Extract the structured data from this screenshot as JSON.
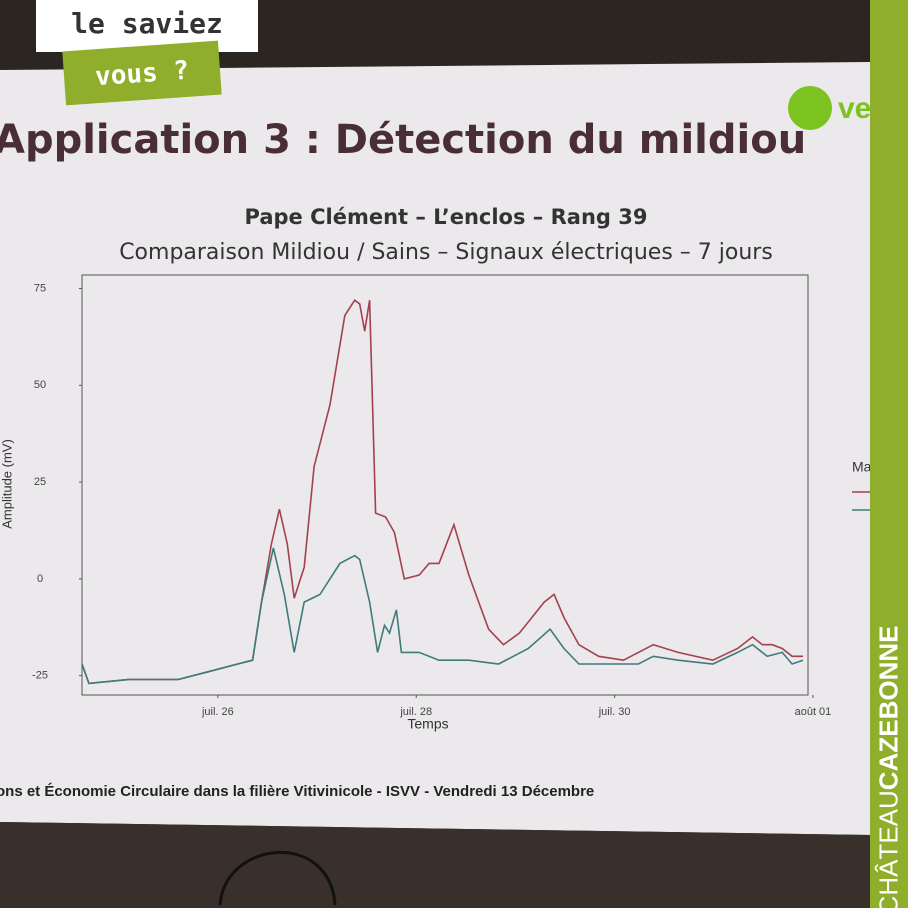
{
  "badge": {
    "line1": "le saviez",
    "line2": "vous ?"
  },
  "logo_text": "ve",
  "slide_title": "Application 3 : Détection du mildiou",
  "chart_data": {
    "type": "line",
    "title": "Pape Clément – L’enclos –  Rang 39",
    "subtitle": "Comparaison Mildiou / Sains – Signaux électriques – 7 jours",
    "x_label": "Temps",
    "y_label": "Amplitude (mV)",
    "legend_title": "Ma",
    "xlim": [
      24.63,
      31.95
    ],
    "ylim": [
      -30,
      78.5
    ],
    "xticks": [
      {
        "value": 26,
        "label": "juil. 26"
      },
      {
        "value": 28,
        "label": "juil. 28"
      },
      {
        "value": 30,
        "label": "juil. 30"
      },
      {
        "value": 32,
        "label": "août 01"
      }
    ],
    "yticks": [
      -25,
      0,
      25,
      50,
      75
    ],
    "series": [
      {
        "color": "#a3414f",
        "x": [
          24.63,
          24.7,
          25.1,
          25.6,
          25.9,
          26.2,
          26.35,
          26.44,
          26.54,
          26.62,
          26.7,
          26.77,
          26.87,
          26.97,
          27.13,
          27.28,
          27.38,
          27.43,
          27.48,
          27.53,
          27.59,
          27.69,
          27.78,
          27.88,
          28.03,
          28.13,
          28.23,
          28.38,
          28.53,
          28.73,
          28.88,
          29.04,
          29.29,
          29.39,
          29.49,
          29.64,
          29.84,
          30.09,
          30.24,
          30.39,
          30.64,
          30.99,
          31.24,
          31.39,
          31.49,
          31.59,
          31.69,
          31.79,
          31.9
        ],
        "values": [
          -22,
          -27,
          -26,
          -26,
          -24,
          -22,
          -21,
          -6,
          9,
          18,
          9,
          -5,
          3,
          29,
          45,
          68,
          72,
          71,
          64,
          72,
          17,
          16,
          12,
          0,
          1,
          4,
          4,
          14,
          1,
          -13,
          -17,
          -14,
          -6,
          -4,
          -10,
          -17,
          -20,
          -21,
          -19,
          -17,
          -19,
          -21,
          -18,
          -15,
          -17,
          -17,
          -18,
          -20,
          -20
        ]
      },
      {
        "color": "#3e7c7a",
        "x": [
          24.63,
          24.7,
          25.1,
          25.6,
          25.9,
          26.2,
          26.35,
          26.44,
          26.56,
          26.67,
          26.77,
          26.87,
          27.03,
          27.23,
          27.38,
          27.43,
          27.53,
          27.61,
          27.68,
          27.73,
          27.8,
          27.85,
          28.03,
          28.23,
          28.53,
          28.83,
          29.13,
          29.35,
          29.49,
          29.64,
          30.04,
          30.24,
          30.39,
          30.64,
          30.99,
          31.24,
          31.39,
          31.54,
          31.69,
          31.79,
          31.9
        ],
        "values": [
          -22,
          -27,
          -26,
          -26,
          -24,
          -22,
          -21,
          -6,
          8,
          -4,
          -19,
          -6,
          -4,
          4,
          6,
          5,
          -6,
          -19,
          -12,
          -14,
          -8,
          -19,
          -19,
          -21,
          -21,
          -22,
          -18,
          -13,
          -18,
          -22,
          -22,
          -22,
          -20,
          -21,
          -22,
          -19,
          -17,
          -20,
          -19,
          -22,
          -21
        ]
      }
    ]
  },
  "footer": "ons et Économie Circulaire dans la filière Vitivinicole - ISVV - Vendredi 13 Décembre",
  "brand": {
    "light": "CHÂTEAU",
    "bold": "CAZEBONNE"
  }
}
